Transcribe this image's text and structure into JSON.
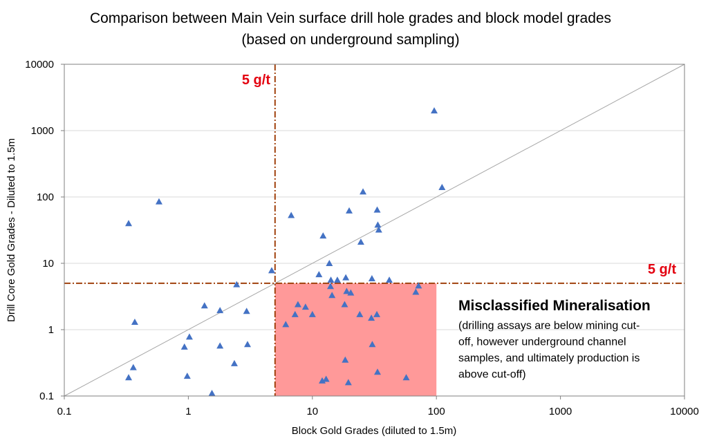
{
  "chart_data": {
    "type": "scatter",
    "title_lines": [
      "Comparison between Main Vein surface drill hole grades and block model grades",
      "(based on underground sampling)"
    ],
    "xlabel": "Block Gold Grades (diluted to 1.5m)",
    "ylabel": "Drill Core Gold Grades - Diluted to 1.5m",
    "x_scale": "log",
    "y_scale": "log",
    "xlim": [
      0.1,
      10000
    ],
    "ylim": [
      0.1,
      10000
    ],
    "x_ticks": [
      "0.1",
      "1",
      "10",
      "100",
      "1000",
      "10000"
    ],
    "y_ticks": [
      "0.1",
      "1",
      "10",
      "100",
      "1000",
      "10000"
    ],
    "grid": "horizontal",
    "marker": "triangle",
    "marker_color": "#4472c4",
    "cutoff": {
      "value": 5,
      "x_label": "5 g/t",
      "y_label": "5 g/t",
      "line_color": "#a0410d",
      "label_color": "#e3000f"
    },
    "parity_line": {
      "from": [
        0.1,
        0.1
      ],
      "to": [
        10000,
        10000
      ],
      "color": "#a6a6a6"
    },
    "highlight_region": {
      "x_range": [
        5,
        100
      ],
      "y_range": [
        0.1,
        5
      ],
      "color": "#ff9999",
      "title": "Misclassified Mineralisation",
      "note_lines": [
        "(drilling assays are below mining cut-",
        "off, however underground channel",
        "samples, and ultimately production is",
        "above cut-off)"
      ]
    },
    "points": [
      [
        0.33,
        40
      ],
      [
        0.58,
        85
      ],
      [
        0.33,
        0.19
      ],
      [
        0.36,
        0.27
      ],
      [
        0.37,
        1.3
      ],
      [
        0.93,
        0.55
      ],
      [
        0.98,
        0.2
      ],
      [
        1.02,
        0.78
      ],
      [
        1.35,
        2.3
      ],
      [
        1.55,
        0.11
      ],
      [
        1.8,
        1.95
      ],
      [
        1.8,
        0.57
      ],
      [
        2.35,
        0.31
      ],
      [
        2.45,
        4.8
      ],
      [
        2.95,
        1.9
      ],
      [
        3.0,
        0.6
      ],
      [
        4.7,
        7.8
      ],
      [
        6.1,
        1.2
      ],
      [
        6.75,
        53
      ],
      [
        7.25,
        1.7
      ],
      [
        7.65,
        2.4
      ],
      [
        8.8,
        2.2
      ],
      [
        10.0,
        1.7
      ],
      [
        11.3,
        6.8
      ],
      [
        12.0,
        0.17
      ],
      [
        12.2,
        26
      ],
      [
        12.9,
        0.18
      ],
      [
        13.7,
        10
      ],
      [
        14.0,
        4.5
      ],
      [
        14.1,
        5.6
      ],
      [
        14.4,
        3.3
      ],
      [
        15.9,
        5.6
      ],
      [
        18.2,
        2.4
      ],
      [
        18.4,
        0.35
      ],
      [
        18.6,
        6.1
      ],
      [
        18.9,
        3.8
      ],
      [
        19.5,
        0.16
      ],
      [
        19.8,
        62
      ],
      [
        20.4,
        3.6
      ],
      [
        24.1,
        1.7
      ],
      [
        24.6,
        21
      ],
      [
        25.6,
        120
      ],
      [
        29.9,
        1.5
      ],
      [
        30.2,
        5.9
      ],
      [
        30.4,
        0.6
      ],
      [
        33.1,
        1.7
      ],
      [
        33.3,
        64
      ],
      [
        33.5,
        0.23
      ],
      [
        33.7,
        38
      ],
      [
        34.3,
        32
      ],
      [
        41.7,
        5.6
      ],
      [
        57.1,
        0.19
      ],
      [
        68.2,
        3.7
      ],
      [
        71.8,
        4.6
      ],
      [
        96.0,
        2000
      ],
      [
        111.0,
        140
      ]
    ]
  }
}
